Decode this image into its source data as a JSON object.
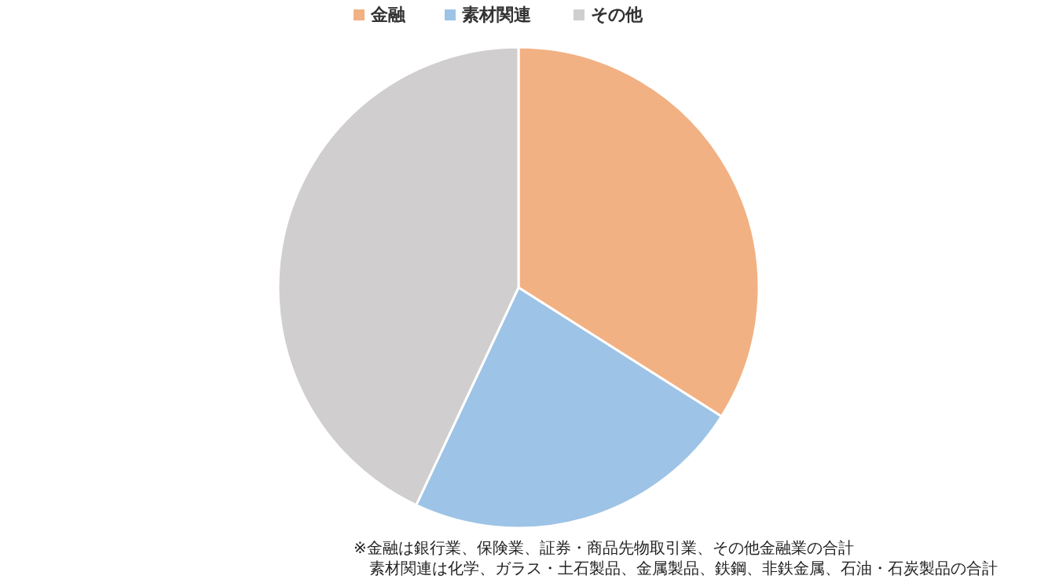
{
  "chart_data": {
    "type": "pie",
    "categories": [
      "金融",
      "素材関連",
      "その他"
    ],
    "values": [
      34,
      23,
      43
    ],
    "colors": [
      "#f2b183",
      "#9dc3e6",
      "#d0cece"
    ],
    "legend": "top",
    "annotations": [
      "※金融は銀行業、保険業、証券・商品先物取引業、その他金融業の合計",
      "素材関連は化学、ガラス・土石製品、金属製品、鉄鋼、非鉄金属、石油・石炭製品の合計"
    ]
  }
}
